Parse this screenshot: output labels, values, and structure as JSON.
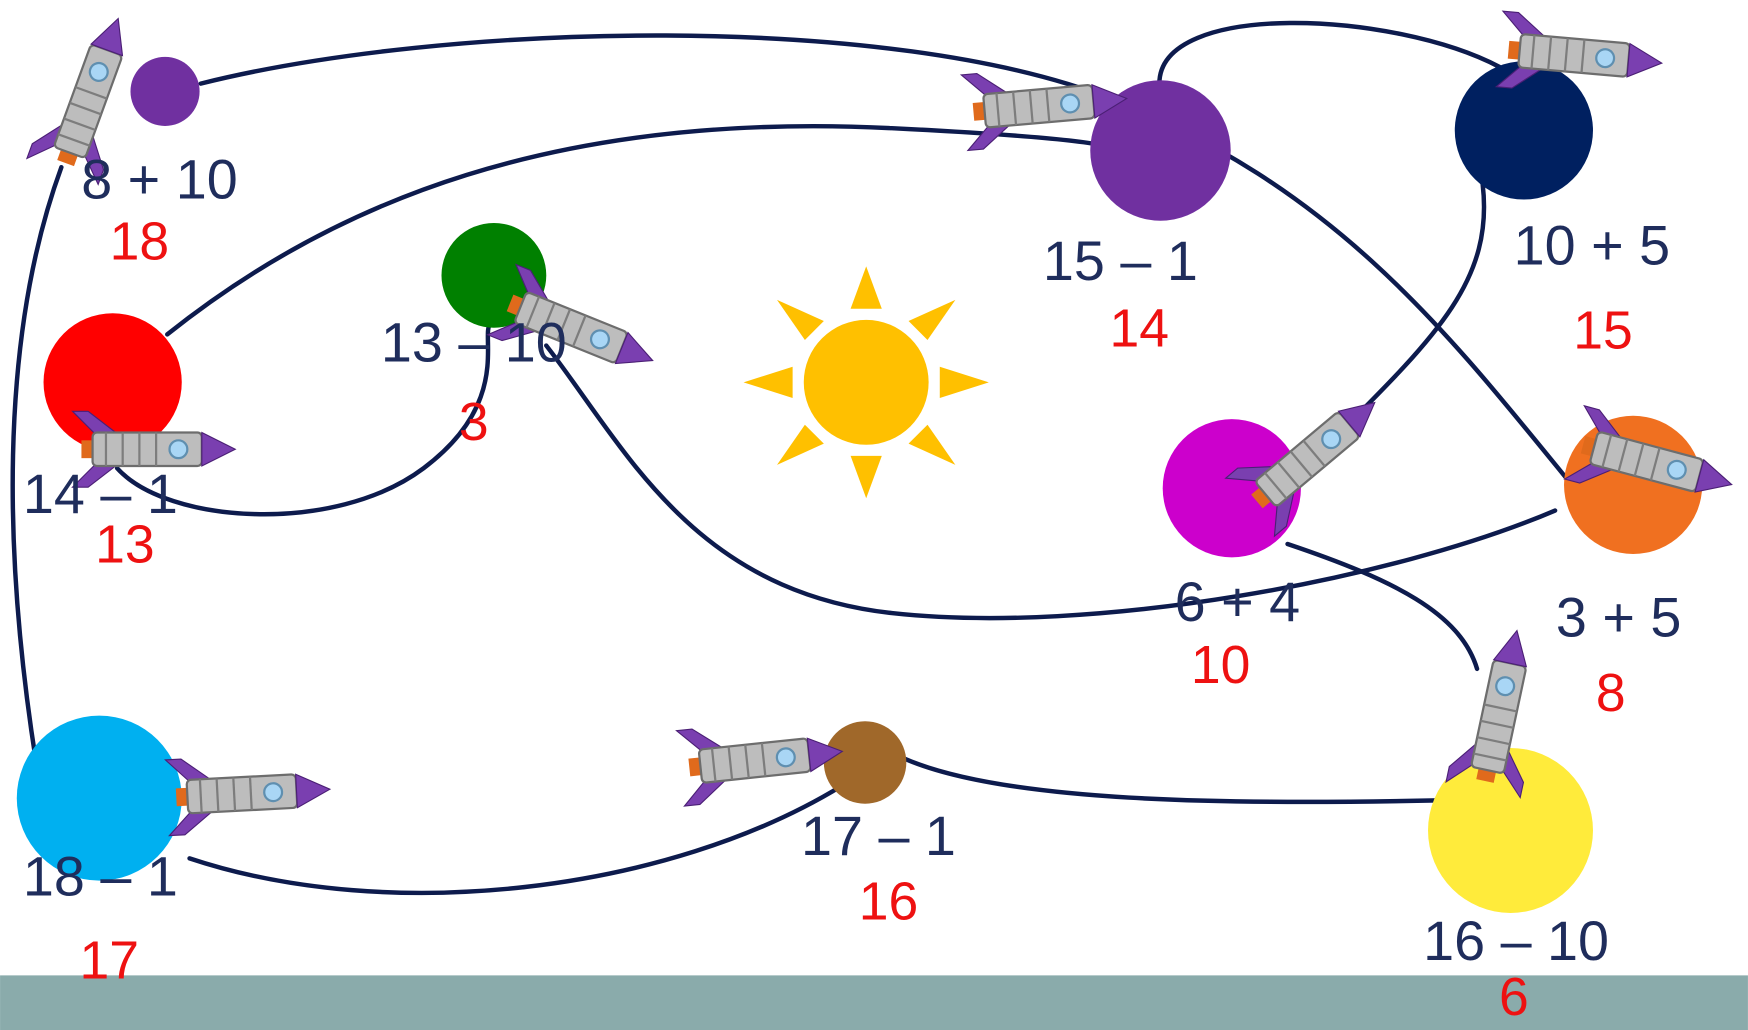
{
  "planets": [
    {
      "equation": "8 + 10",
      "answer": "18"
    },
    {
      "equation": "14 – 1",
      "answer": "13"
    },
    {
      "equation": "13 – 10",
      "answer": "3"
    },
    {
      "equation": "15 – 1",
      "answer": "14"
    },
    {
      "equation": "10 + 5",
      "answer": "15"
    },
    {
      "equation": "6 + 4",
      "answer": "10"
    },
    {
      "equation": "3 + 5",
      "answer": "8"
    },
    {
      "equation": "18 – 1",
      "answer": "17"
    },
    {
      "equation": "17 – 1",
      "answer": "16"
    },
    {
      "equation": "16 – 10",
      "answer": "6"
    }
  ]
}
